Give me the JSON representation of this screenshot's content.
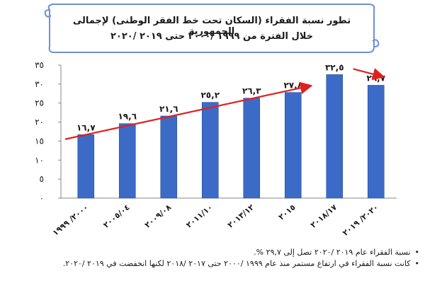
{
  "chart_data": {
    "type": "bar",
    "title": "تطور نسبة الفقراء (السكان تحت خط الفقر الوطنى) لإجمالى الجمهورية",
    "subtitle": "خلال الفترة من ١٩٩٩ /٢٠٠٠ حتى ٢٠١٩ /٢٠٢٠",
    "categories": [
      "٢٠٠٠/ ١٩٩٩",
      "٢٠٠٥/٠٤",
      "٢٠٠٩/٠٨",
      "٢٠١١/١٠",
      "٢٠١٣/١٢",
      "٢٠١٥",
      "٢٠١٨/١٧",
      "٢٠٢٠/ ٢٠١٩"
    ],
    "values": [
      16.7,
      19.6,
      21.6,
      25.2,
      26.3,
      27.8,
      32.5,
      29.7
    ],
    "value_labels": [
      "١٦,٧",
      "١٩,٦",
      "٢١,٦",
      "٢٥,٢",
      "٢٦,٣",
      "٢٧,٨",
      "٣٢,٥",
      "٢٩,٧"
    ],
    "ylim": [
      0,
      35
    ],
    "yticks": [
      0,
      5,
      10,
      15,
      20,
      25,
      30,
      35
    ],
    "ytick_labels": [
      "٠",
      "٥",
      "١٠",
      "١٥",
      "٢٠",
      "٢٥",
      "٣٠",
      "٣٥"
    ],
    "xlabel": "",
    "ylabel": "",
    "grid": false,
    "trend_arrows": [
      {
        "from_value": 15.5,
        "from_category_index": -0.5,
        "to_value": 29.5,
        "to_category_index": 5.4,
        "color": "#e02020"
      },
      {
        "from_value": 34.0,
        "from_category_index": 6.45,
        "to_value": 32.0,
        "to_category_index": 7.15,
        "color": "#e02020"
      }
    ],
    "colors": {
      "bar": "#3b6bc7",
      "bar_edge": "#2a4f9c",
      "axis": "#888888",
      "arrow": "#e02020",
      "banner_border": "#6e8fd6",
      "banner_fill": "#ffffff"
    }
  },
  "notes": [
    "نسبة الفقراء عام ٢٠١٩ /٢٠٢٠ تصل إلى ٢٩,٧ %.",
    "كانت نسبة الفقراء في ارتفاع مستمر منذ عام ١٩٩٩ /٢٠٠٠ حتى ٢٠١٧ /٢٠١٨ لكنها انخفضت في ٢٠١٩ /٢٠٢٠."
  ],
  "bullet_glyph": "•"
}
